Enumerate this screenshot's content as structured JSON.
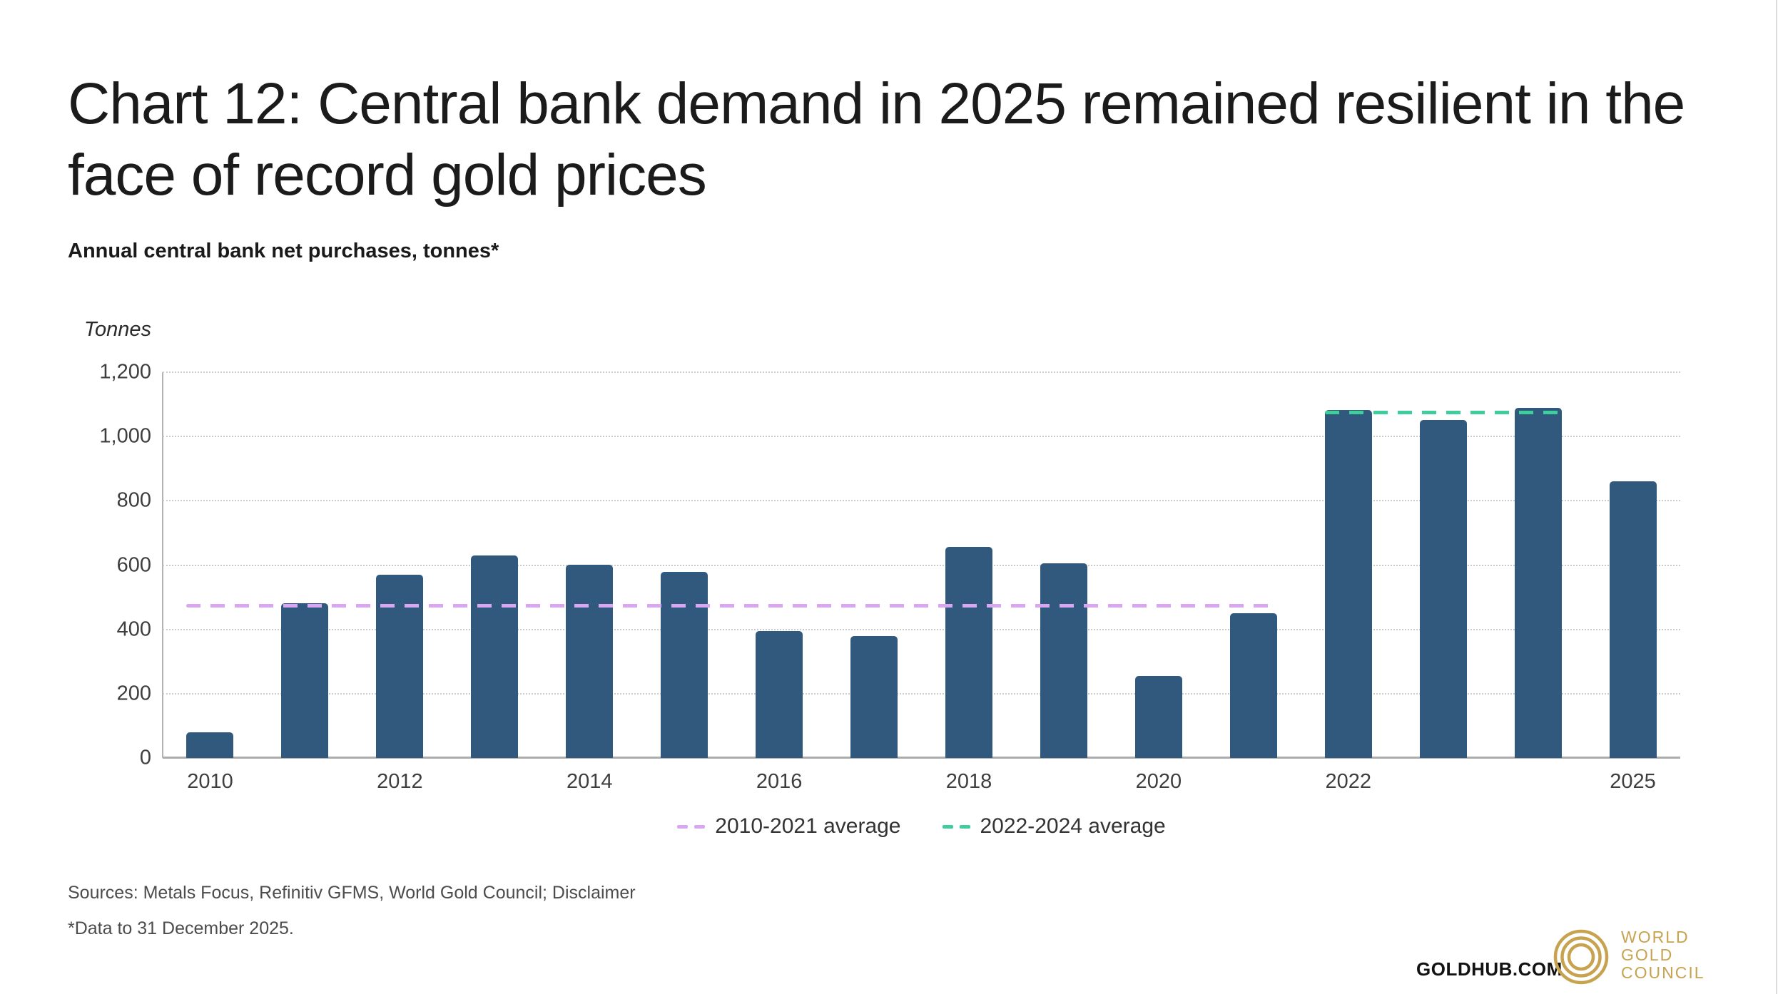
{
  "chart_data": {
    "type": "bar",
    "title": "Chart 12: Central bank demand in 2025 remained resilient in the face of record gold prices",
    "subtitle": "Annual central bank net purchases, tonnes*",
    "ylabel": "Tonnes",
    "ylim": [
      0,
      1200
    ],
    "yticks": [
      0,
      200,
      400,
      600,
      800,
      1000,
      1200
    ],
    "ytick_labels": [
      "0",
      "200",
      "400",
      "600",
      "800",
      "1,000",
      "1,200"
    ],
    "grid": "horizontal-dotted",
    "legend_position": "bottom-center",
    "bar_color": "#31597D",
    "categories": [
      "2010",
      "2011",
      "2012",
      "2013",
      "2014",
      "2015",
      "2016",
      "2017",
      "2018",
      "2019",
      "2020",
      "2021",
      "2022",
      "2023",
      "2024",
      "2025"
    ],
    "values": [
      79,
      481,
      569,
      630,
      601,
      580,
      395,
      379,
      656,
      605,
      255,
      450,
      1082,
      1051,
      1089,
      860
    ],
    "x_tick_labels": [
      "2010",
      "2012",
      "2014",
      "2016",
      "2018",
      "2020",
      "2022",
      "2025"
    ],
    "averages": [
      {
        "label": "2010-2021 average",
        "from": "2010",
        "to": "2021",
        "value": 473,
        "color": "#D9A6F2"
      },
      {
        "label": "2022-2024 average",
        "from": "2022",
        "to": "2024",
        "value": 1074,
        "color": "#3FCD9B"
      }
    ]
  },
  "footer": {
    "sources_text": "Sources: Metals Focus, Refinitiv GFMS, World Gold Council; ",
    "disclaimer_label": "Disclaimer",
    "footnote": "*Data to 31 December 2025.",
    "goldhub": "GOLDHUB.COM",
    "logo_lines": [
      "WORLD",
      "GOLD",
      "COUNCIL"
    ],
    "logo_color": "#C7A34F"
  }
}
